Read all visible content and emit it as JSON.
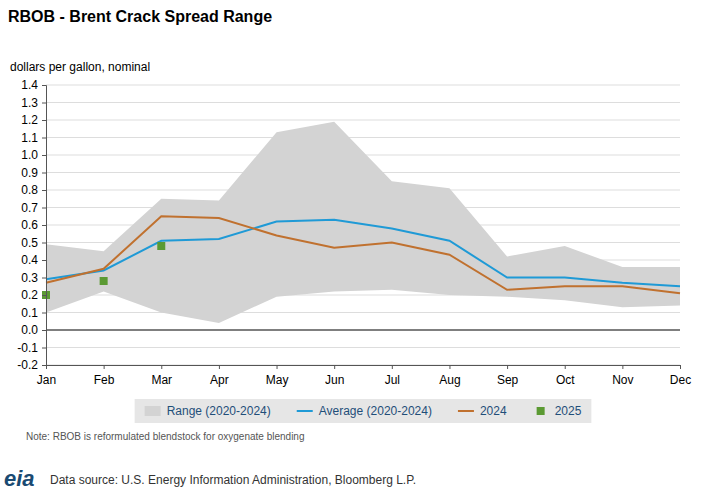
{
  "chart_data": {
    "type": "line",
    "title": "RBOB - Brent Crack Spread Range",
    "ylabel": "dollars per gallon, nominal",
    "annotations": [
      "Note: RBOB is reformulated blendstock for oxygenate blending",
      "Data source: U.S. Energy Information Administration, Bloomberg L.P.",
      "eia"
    ],
    "categories": [
      "Jan",
      "Feb",
      "Mar",
      "Apr",
      "May",
      "Jun",
      "Jul",
      "Aug",
      "Sep",
      "Oct",
      "Nov",
      "Dec"
    ],
    "series": [
      {
        "name": "Range (2020-2024)",
        "type": "range",
        "color": "#d3d3d3",
        "lower": [
          0.1,
          0.22,
          0.1,
          0.04,
          0.19,
          0.22,
          0.23,
          0.2,
          0.19,
          0.17,
          0.13,
          0.14
        ],
        "upper": [
          0.49,
          0.45,
          0.75,
          0.74,
          1.13,
          1.19,
          0.85,
          0.81,
          0.42,
          0.48,
          0.36,
          0.36
        ]
      },
      {
        "name": "Average (2020-2024)",
        "type": "line",
        "color": "#1f9ad6",
        "values": [
          0.29,
          0.34,
          0.51,
          0.52,
          0.62,
          0.63,
          0.58,
          0.51,
          0.3,
          0.3,
          0.27,
          0.25
        ]
      },
      {
        "name": "2024",
        "type": "line",
        "color": "#c0712f",
        "values": [
          0.27,
          0.35,
          0.65,
          0.64,
          0.54,
          0.47,
          0.5,
          0.43,
          0.23,
          0.25,
          0.25,
          0.21
        ]
      },
      {
        "name": "2025",
        "type": "scatter",
        "color": "#5b9a33",
        "marker": "square",
        "values": [
          0.2,
          0.28,
          0.48,
          null,
          null,
          null,
          null,
          null,
          null,
          null,
          null,
          null
        ]
      }
    ],
    "ylim": [
      -0.2,
      1.4
    ],
    "yticks": [
      -0.2,
      -0.1,
      {
        "value": 0,
        "label": "0.0"
      },
      0.1,
      0.2,
      0.3,
      0.4,
      0.5,
      0.6,
      0.7,
      0.8,
      0.9,
      {
        "value": 1,
        "label": "1.0"
      },
      1.1,
      1.2,
      1.3,
      1.4
    ],
    "grid": true,
    "legend": "bottom"
  }
}
